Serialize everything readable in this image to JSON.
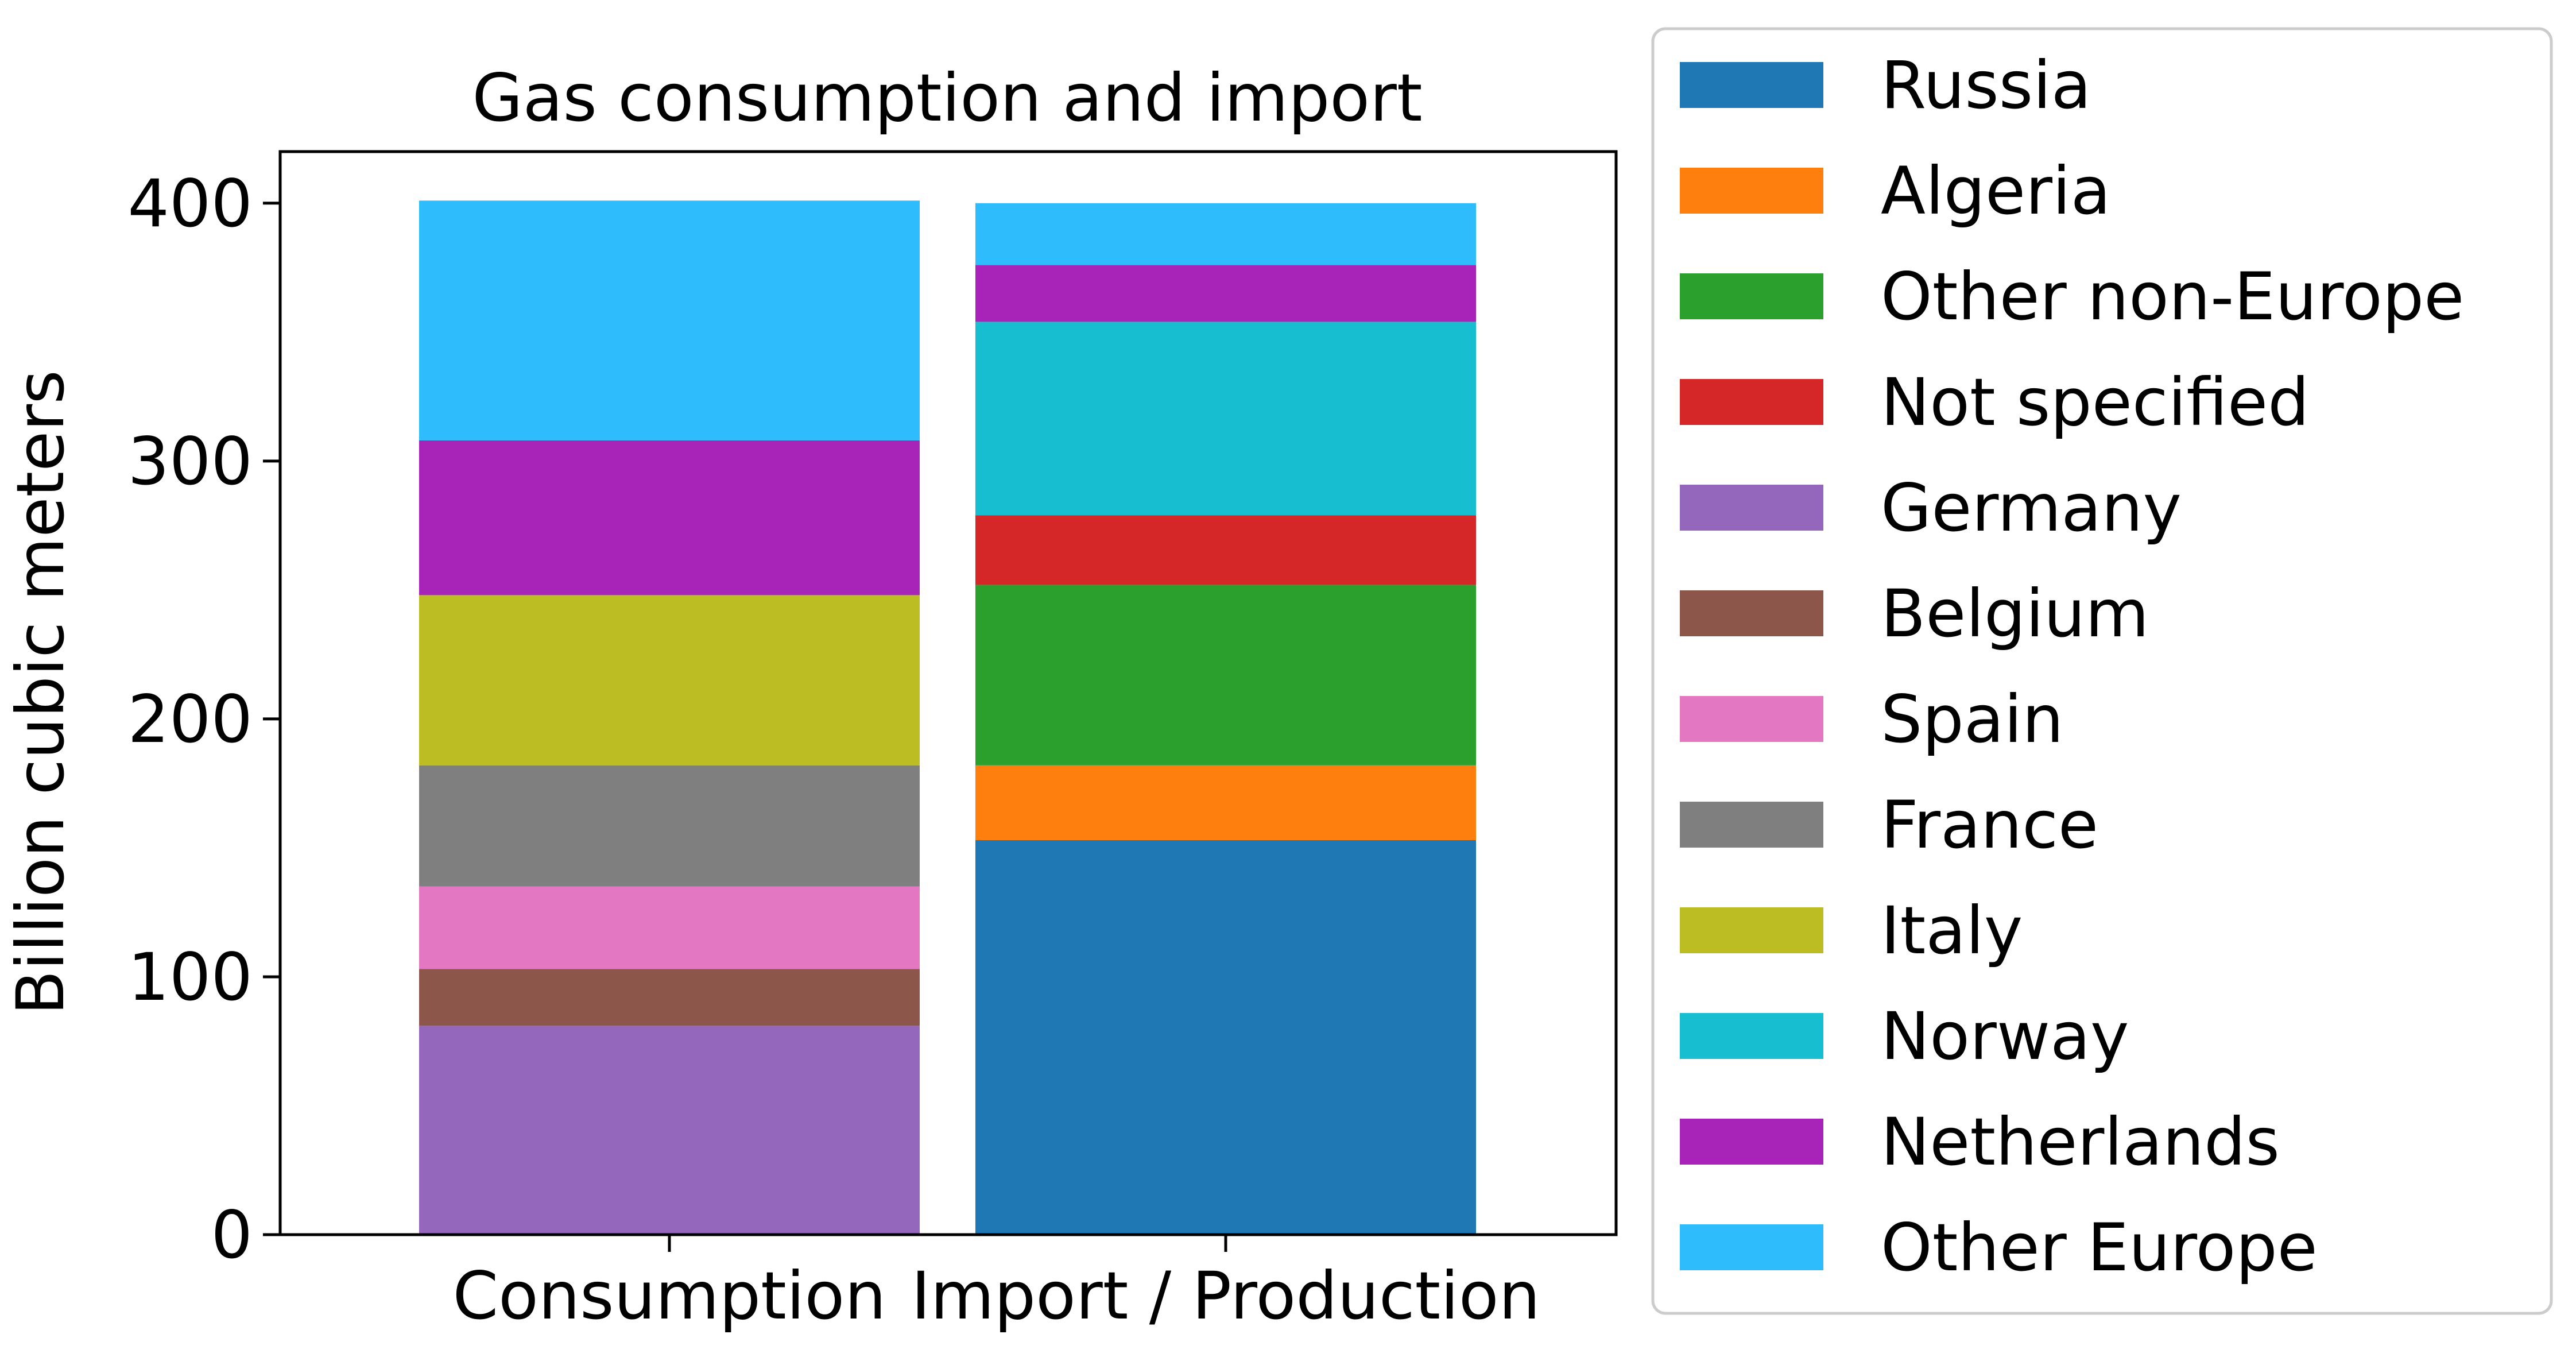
{
  "chart_data": {
    "type": "bar",
    "stacked": true,
    "title": "Gas consumption and import",
    "xlabel": "",
    "ylabel": "Billion cubic meters",
    "ylim": [
      0,
      420
    ],
    "yticks": [
      0,
      100,
      200,
      300,
      400
    ],
    "categories": [
      "Consumption",
      "Import / Production"
    ],
    "grid": false,
    "legend_position": "outside-right",
    "series": [
      {
        "name": "Russia",
        "color": "#1f77b4",
        "values": [
          0,
          153
        ]
      },
      {
        "name": "Algeria",
        "color": "#ff7f0e",
        "values": [
          0,
          29
        ]
      },
      {
        "name": "Other non-Europe",
        "color": "#2ca02c",
        "values": [
          0,
          70
        ]
      },
      {
        "name": "Not specified",
        "color": "#d62728",
        "values": [
          0,
          27
        ]
      },
      {
        "name": "Germany",
        "color": "#9467bd",
        "values": [
          81,
          0
        ]
      },
      {
        "name": "Belgium",
        "color": "#8c564b",
        "values": [
          22,
          0
        ]
      },
      {
        "name": "Spain",
        "color": "#e377c2",
        "values": [
          32,
          0
        ]
      },
      {
        "name": "France",
        "color": "#7f7f7f",
        "values": [
          47,
          0
        ]
      },
      {
        "name": "Italy",
        "color": "#bcbd22",
        "values": [
          66,
          0
        ]
      },
      {
        "name": "Norway",
        "color": "#17becf",
        "values": [
          0,
          75
        ]
      },
      {
        "name": "Netherlands",
        "color": "#a824b8",
        "values": [
          60,
          22
        ]
      },
      {
        "name": "Other Europe",
        "color": "#2ebcfd",
        "values": [
          93,
          24
        ]
      }
    ]
  }
}
